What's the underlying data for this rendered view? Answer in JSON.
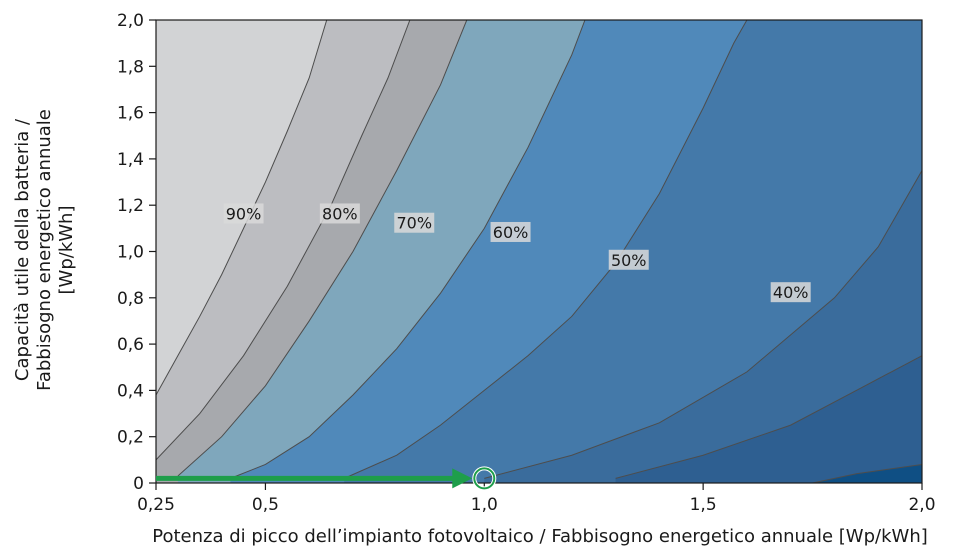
{
  "chart_data": {
    "type": "contour",
    "xlabel": "Potenza di picco dell’impianto fotovoltaico / Fabbisogno energetico annuale [Wp/kWh]",
    "ylabel_lines": [
      "Capacità utile della batteria /",
      "Fabbisogno energetico annuale",
      "[Wp/kWh]"
    ],
    "xlim": [
      0.25,
      2.0
    ],
    "ylim": [
      0,
      2.0
    ],
    "xticks": [
      0.25,
      0.5,
      1.0,
      1.5,
      2.0
    ],
    "xtick_labels": [
      "0,25",
      "0,5",
      "1,0",
      "1,5",
      "2,0"
    ],
    "yticks": [
      0,
      0.2,
      0.4,
      0.6,
      0.8,
      1.0,
      1.2,
      1.4,
      1.6,
      1.8,
      2.0
    ],
    "ytick_labels": [
      "0",
      "0,2",
      "0,4",
      "0,6",
      "0,8",
      "1,0",
      "1,2",
      "1,4",
      "1,6",
      "1,8",
      "2,0"
    ],
    "levels": [
      {
        "label": "90%",
        "fill": "#d2d3d5",
        "label_pos": [
          0.45,
          1.16
        ],
        "boundary": [
          [
            0.25,
            0.38
          ],
          [
            0.3,
            0.55
          ],
          [
            0.35,
            0.72
          ],
          [
            0.4,
            0.9
          ],
          [
            0.45,
            1.1
          ],
          [
            0.5,
            1.3
          ],
          [
            0.55,
            1.52
          ],
          [
            0.6,
            1.75
          ],
          [
            0.64,
            2.0
          ]
        ]
      },
      {
        "label": "80%",
        "fill": "#bcbdc1",
        "label_pos": [
          0.67,
          1.16
        ],
        "boundary": [
          [
            0.25,
            0.1
          ],
          [
            0.35,
            0.3
          ],
          [
            0.45,
            0.55
          ],
          [
            0.55,
            0.85
          ],
          [
            0.65,
            1.2
          ],
          [
            0.72,
            1.5
          ],
          [
            0.78,
            1.75
          ],
          [
            0.83,
            2.0
          ]
        ]
      },
      {
        "label": "70%",
        "fill": "#a7a9ad",
        "label_pos": [
          0.84,
          1.12
        ],
        "boundary": [
          [
            0.3,
            0.03
          ],
          [
            0.4,
            0.2
          ],
          [
            0.5,
            0.42
          ],
          [
            0.6,
            0.7
          ],
          [
            0.7,
            1.0
          ],
          [
            0.8,
            1.35
          ],
          [
            0.9,
            1.72
          ],
          [
            0.96,
            2.0
          ]
        ]
      },
      {
        "label": "60%",
        "fill": "#7fa7bc",
        "label_pos": [
          1.06,
          1.08
        ],
        "boundary": [
          [
            0.42,
            0.02
          ],
          [
            0.5,
            0.08
          ],
          [
            0.6,
            0.2
          ],
          [
            0.7,
            0.38
          ],
          [
            0.8,
            0.58
          ],
          [
            0.9,
            0.82
          ],
          [
            1.0,
            1.1
          ],
          [
            1.1,
            1.45
          ],
          [
            1.2,
            1.85
          ],
          [
            1.23,
            2.0
          ]
        ]
      },
      {
        "label": "50%",
        "fill": "#5089ba",
        "label_pos": [
          1.33,
          0.96
        ],
        "boundary": [
          [
            0.68,
            0.02
          ],
          [
            0.8,
            0.12
          ],
          [
            0.9,
            0.25
          ],
          [
            1.0,
            0.4
          ],
          [
            1.1,
            0.55
          ],
          [
            1.2,
            0.72
          ],
          [
            1.3,
            0.95
          ],
          [
            1.4,
            1.25
          ],
          [
            1.5,
            1.62
          ],
          [
            1.57,
            1.9
          ],
          [
            1.6,
            2.0
          ]
        ]
      },
      {
        "label": "40%",
        "fill": "#4479a9",
        "label_pos": [
          1.7,
          0.82
        ],
        "boundary": [
          [
            1.0,
            0.02
          ],
          [
            1.2,
            0.12
          ],
          [
            1.4,
            0.26
          ],
          [
            1.6,
            0.48
          ],
          [
            1.8,
            0.8
          ],
          [
            1.9,
            1.02
          ],
          [
            2.0,
            1.35
          ]
        ]
      },
      {
        "label": "",
        "fill": "#3a6c9c",
        "label_pos": null,
        "boundary": [
          [
            1.3,
            0.02
          ],
          [
            1.5,
            0.12
          ],
          [
            1.7,
            0.25
          ],
          [
            1.85,
            0.4
          ],
          [
            2.0,
            0.55
          ]
        ]
      },
      {
        "label": "",
        "fill": "#2e5f91",
        "label_pos": null,
        "boundary": [
          [
            1.75,
            0.0
          ],
          [
            1.85,
            0.04
          ],
          [
            2.0,
            0.08
          ]
        ]
      },
      {
        "label": "",
        "fill": "#0f4f84",
        "label_pos": null,
        "boundary": null
      }
    ],
    "annotation": {
      "type": "arrow",
      "color": "#1e9e4a",
      "from": [
        0.25,
        0.02
      ],
      "to": [
        1.0,
        0.02
      ],
      "marker": "circle",
      "marker_at": [
        1.0,
        0.02
      ]
    }
  }
}
